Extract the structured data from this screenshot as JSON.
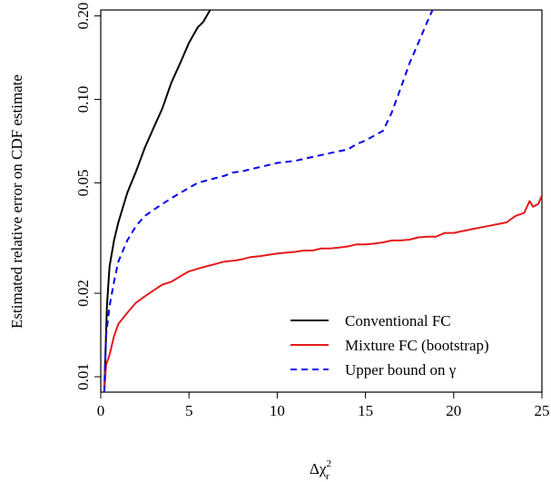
{
  "chart_data": {
    "type": "line",
    "title": "",
    "xlabel": "Δχ",
    "xlabel_sup": "2",
    "xlabel_sub": "r",
    "ylabel": "Estimated relative error on CDF estimate",
    "xlim": [
      0,
      25
    ],
    "ylim": [
      0.0088,
      0.21
    ],
    "yscale": "log",
    "x_ticks": [
      0,
      5,
      10,
      15,
      20,
      25
    ],
    "x_tick_labels": [
      "0",
      "5",
      "10",
      "15",
      "20",
      "25"
    ],
    "y_ticks": [
      0.01,
      0.02,
      0.05,
      0.1,
      0.2
    ],
    "y_tick_labels": [
      "0.01",
      "0.02",
      "0.05",
      "0.10",
      "0.20"
    ],
    "legend_position": "bottom-right",
    "series": [
      {
        "name": "Conventional FC",
        "color": "#000000",
        "dash": "solid",
        "x": [
          0.2,
          0.35,
          0.5,
          0.75,
          1.0,
          1.5,
          2.0,
          2.5,
          3.0,
          3.5,
          4.0,
          4.5,
          5.0,
          5.5,
          5.8,
          6.1,
          6.2
        ],
        "y": [
          0.0088,
          0.018,
          0.025,
          0.031,
          0.036,
          0.046,
          0.055,
          0.067,
          0.079,
          0.093,
          0.115,
          0.135,
          0.16,
          0.182,
          0.19,
          0.205,
          0.21
        ]
      },
      {
        "name": "Mixture FC (bootstrap)",
        "color": "#e41a1c",
        "dash": "solid",
        "x": [
          0.2,
          0.3,
          0.5,
          0.75,
          1.0,
          1.5,
          2.0,
          2.5,
          3.0,
          3.5,
          4.0,
          4.5,
          5.0,
          5.5,
          6.0,
          6.5,
          7.0,
          7.5,
          8.0,
          8.5,
          9.0,
          9.5,
          10.0,
          10.5,
          11.0,
          11.5,
          12.0,
          12.5,
          13.0,
          13.5,
          14.0,
          14.5,
          15.0,
          15.5,
          16.0,
          16.5,
          17.0,
          17.5,
          18.0,
          18.5,
          19.0,
          19.5,
          20.0,
          20.5,
          21.0,
          21.5,
          22.0,
          22.5,
          23.0,
          23.5,
          24.0,
          24.3,
          24.5,
          24.8,
          25.0
        ],
        "y": [
          0.0088,
          0.011,
          0.012,
          0.014,
          0.0155,
          0.017,
          0.0185,
          0.0195,
          0.0205,
          0.0215,
          0.022,
          0.023,
          0.024,
          0.0245,
          0.025,
          0.0255,
          0.026,
          0.0262,
          0.0265,
          0.027,
          0.0272,
          0.0275,
          0.0278,
          0.028,
          0.0282,
          0.0285,
          0.0285,
          0.029,
          0.029,
          0.0292,
          0.0295,
          0.03,
          0.03,
          0.0302,
          0.0305,
          0.031,
          0.031,
          0.0312,
          0.0318,
          0.032,
          0.032,
          0.033,
          0.033,
          0.0335,
          0.034,
          0.0345,
          0.035,
          0.0355,
          0.036,
          0.038,
          0.039,
          0.043,
          0.041,
          0.042,
          0.045
        ]
      },
      {
        "name": "Upper bound on γ",
        "color": "#0000ee",
        "dash": "dashed",
        "x": [
          0.2,
          0.3,
          0.5,
          0.75,
          1.0,
          1.5,
          2.0,
          2.5,
          3.0,
          3.5,
          4.0,
          4.5,
          5.0,
          5.5,
          6.0,
          6.5,
          7.0,
          7.5,
          8.0,
          8.5,
          9.0,
          9.5,
          10.0,
          10.5,
          11.0,
          11.5,
          12.0,
          12.5,
          13.0,
          13.5,
          14.0,
          14.5,
          15.0,
          15.5,
          16.0,
          16.5,
          17.0,
          17.5,
          18.0,
          18.5,
          18.8
        ],
        "y": [
          0.0088,
          0.014,
          0.018,
          0.022,
          0.026,
          0.031,
          0.035,
          0.038,
          0.04,
          0.042,
          0.044,
          0.046,
          0.048,
          0.05,
          0.051,
          0.052,
          0.053,
          0.0545,
          0.055,
          0.056,
          0.057,
          0.058,
          0.059,
          0.0595,
          0.06,
          0.061,
          0.062,
          0.063,
          0.064,
          0.065,
          0.066,
          0.069,
          0.071,
          0.074,
          0.077,
          0.09,
          0.11,
          0.135,
          0.16,
          0.19,
          0.21
        ]
      }
    ]
  }
}
